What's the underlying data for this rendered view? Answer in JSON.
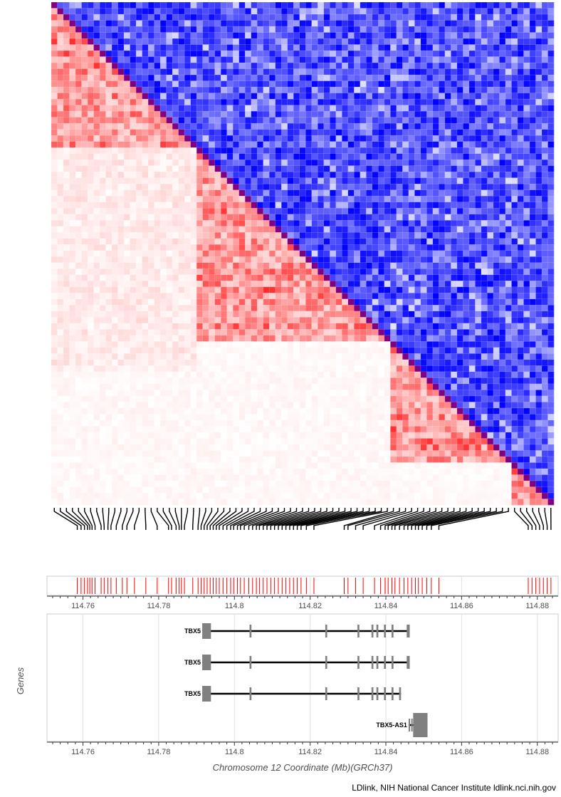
{
  "colors": {
    "r2": "#ff0000",
    "dprime": "#0000ff",
    "variant_tick": "#ff0000",
    "exon": "#808080",
    "intron": "#000000",
    "panel_border": "#cccccc",
    "grid": "#e0e0e0"
  },
  "chart_data": {
    "type": "heatmap",
    "description_layers": [
      "LD heatmap (upper-right blue = D', lower-left red = R2)",
      "variant positions track",
      "gene track"
    ],
    "chromosome": "12",
    "x_axis": {
      "label": "Chromosome 12 Coordinate (Mb)(GRCh37)",
      "range": [
        114.7505,
        114.8855
      ],
      "ticks": [
        114.76,
        114.78,
        114.8,
        114.82,
        114.84,
        114.86,
        114.88
      ],
      "tick_labels": [
        "114.76",
        "114.78",
        "114.8",
        "114.82",
        "114.84",
        "114.86",
        "114.88"
      ]
    },
    "variants_mb": [
      114.7585,
      114.7595,
      114.7604,
      114.7612,
      114.7618,
      114.7624,
      114.7632,
      114.7648,
      114.7656,
      114.7666,
      114.7674,
      114.7688,
      114.7704,
      114.7716,
      114.7736,
      114.7766,
      114.7796,
      114.7826,
      114.7834,
      114.7846,
      114.7854,
      114.786,
      114.7868,
      114.789,
      114.7904,
      114.7912,
      114.792,
      114.7928,
      114.7936,
      114.7944,
      114.7952,
      114.796,
      114.797,
      114.798,
      114.799,
      114.7998,
      114.8008,
      114.8016,
      114.8026,
      114.8038,
      114.8048,
      114.8058,
      114.8066,
      114.8076,
      114.8086,
      114.8096,
      114.8106,
      114.8116,
      114.8126,
      114.8136,
      114.8146,
      114.8156,
      114.8166,
      114.8176,
      114.819,
      114.821,
      114.829,
      114.83,
      114.832,
      114.834,
      114.837,
      114.8386,
      114.8398,
      114.8406,
      114.8416,
      114.8424,
      114.8436,
      114.8448,
      114.8458,
      114.8468,
      114.8478,
      114.8486,
      114.8496,
      114.8508,
      114.852,
      114.854,
      114.8776,
      114.8786,
      114.8796,
      114.8806,
      114.8816,
      114.8826,
      114.8836
    ],
    "genes": [
      {
        "name": "TBX5",
        "start": 114.7915,
        "end": 114.8463,
        "exons": [
          [
            114.7915,
            114.7938
          ],
          [
            114.804,
            114.8045
          ],
          [
            114.824,
            114.8245
          ],
          [
            114.8325,
            114.833
          ],
          [
            114.8362,
            114.8367
          ],
          [
            114.8375,
            114.838
          ],
          [
            114.8395,
            114.84
          ],
          [
            114.8415,
            114.842
          ],
          [
            114.8455,
            114.8463
          ]
        ]
      },
      {
        "name": "TBX5",
        "start": 114.7915,
        "end": 114.8463,
        "exons": [
          [
            114.7915,
            114.7938
          ],
          [
            114.804,
            114.8045
          ],
          [
            114.824,
            114.8245
          ],
          [
            114.8325,
            114.833
          ],
          [
            114.8362,
            114.8367
          ],
          [
            114.8375,
            114.838
          ],
          [
            114.8395,
            114.84
          ],
          [
            114.8415,
            114.842
          ],
          [
            114.8455,
            114.8463
          ]
        ]
      },
      {
        "name": "TBX5",
        "start": 114.7915,
        "end": 114.844,
        "exons": [
          [
            114.7915,
            114.7938
          ],
          [
            114.804,
            114.8045
          ],
          [
            114.824,
            114.8245
          ],
          [
            114.8325,
            114.833
          ],
          [
            114.8362,
            114.8367
          ],
          [
            114.8375,
            114.838
          ],
          [
            114.8395,
            114.84
          ],
          [
            114.8415,
            114.842
          ],
          [
            114.8435,
            114.844
          ]
        ]
      },
      {
        "name": "TBX5-AS1",
        "start": 114.846,
        "end": 114.851,
        "exons": [
          [
            114.846,
            114.8464
          ],
          [
            114.8467,
            114.847
          ],
          [
            114.8472,
            114.851
          ]
        ]
      }
    ],
    "genes_axis_label": "Genes"
  },
  "credit": "LDlink, NIH National Cancer Institute ldlink.nci.nih.gov"
}
